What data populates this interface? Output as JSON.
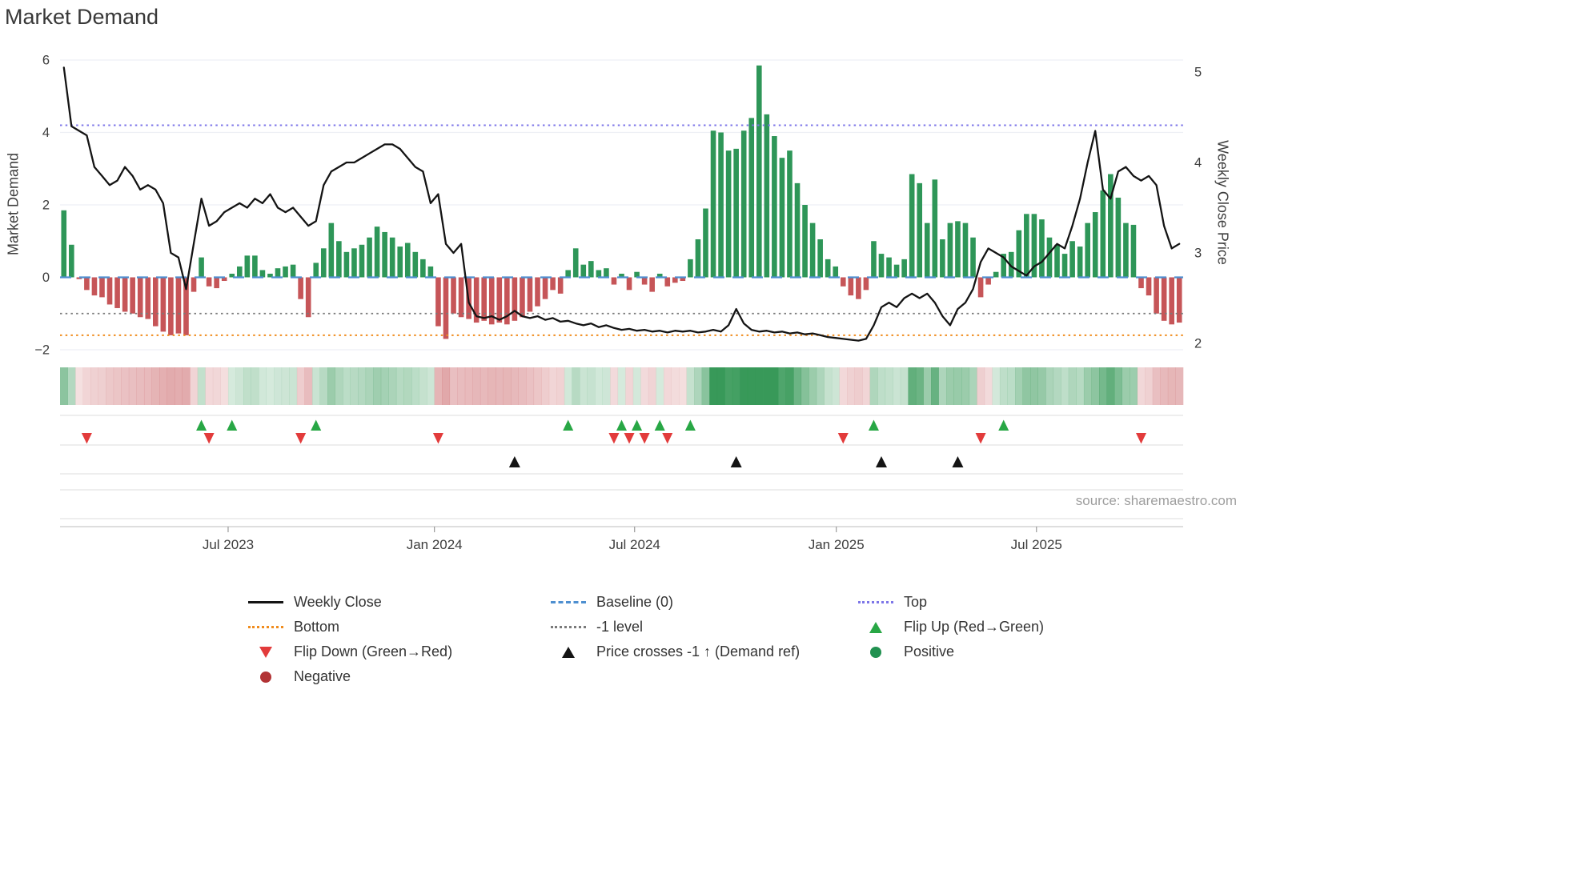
{
  "title": "Market Demand",
  "source": "source: sharemaestro.com",
  "colors": {
    "bar_positive": "#2e9658",
    "bar_negative": "#c65558",
    "weekly_close": "#141414",
    "top_line": "#7d76e8",
    "baseline_line": "#4e8fd0",
    "minus1_line": "#7a7a7a",
    "bottom_line": "#f08c1d",
    "flip_up": "#28a745",
    "flip_down": "#e23b3b",
    "price_cross": "#141414",
    "positive_dot": "#219150",
    "negative_dot": "#b23335",
    "grid": "#edeff5",
    "separator": "#dcdcdc",
    "axis": "#c9c9c9",
    "tick_text": "#3d3d3d"
  },
  "chart_data": {
    "type": "combo: weekly bar (demand) + line (price) + heatmap strip + event markers",
    "title": "Market Demand",
    "x_unit": "weeks (Feb 2023 - Nov 2025)",
    "x_ticks": [
      {
        "week": 21.5,
        "label": "Jul 2023"
      },
      {
        "week": 48.5,
        "label": "Jan 2024"
      },
      {
        "week": 74.7,
        "label": "Jul 2024"
      },
      {
        "week": 101.1,
        "label": "Jan 2025"
      },
      {
        "week": 127.3,
        "label": "Jul 2025"
      }
    ],
    "left_axis": {
      "label": "Market Demand",
      "ticks": [
        6,
        4,
        2,
        0,
        -2
      ],
      "tick_labels": [
        "6",
        "4",
        "2",
        "0",
        "−2"
      ],
      "range": [
        -2.2,
        6.2
      ]
    },
    "right_axis": {
      "label": "Weekly Close Price",
      "ticks": [
        5,
        4,
        3,
        2
      ],
      "tick_labels": [
        "5",
        "4",
        "3",
        "2"
      ],
      "range": [
        1.93,
        5.13
      ]
    },
    "series": [
      {
        "name": "Market Demand",
        "type": "bar",
        "axis": "left",
        "values": [
          1.85,
          0.9,
          -0.05,
          -0.35,
          -0.5,
          -0.55,
          -0.75,
          -0.85,
          -0.95,
          -1.0,
          -1.1,
          -1.15,
          -1.35,
          -1.5,
          -1.6,
          -1.55,
          -1.6,
          -0.4,
          0.55,
          -0.25,
          -0.3,
          -0.1,
          0.1,
          0.3,
          0.6,
          0.6,
          0.2,
          0.1,
          0.25,
          0.3,
          0.35,
          -0.6,
          -1.1,
          0.4,
          0.8,
          1.5,
          1.0,
          0.7,
          0.8,
          0.9,
          1.1,
          1.4,
          1.25,
          1.1,
          0.85,
          0.95,
          0.7,
          0.5,
          0.3,
          -1.35,
          -1.7,
          -1.0,
          -1.1,
          -1.15,
          -1.25,
          -1.2,
          -1.3,
          -1.25,
          -1.3,
          -1.2,
          -1.1,
          -0.95,
          -0.8,
          -0.6,
          -0.35,
          -0.45,
          0.2,
          0.8,
          0.35,
          0.45,
          0.2,
          0.25,
          -0.2,
          0.1,
          -0.35,
          0.15,
          -0.2,
          -0.4,
          0.1,
          -0.25,
          -0.15,
          -0.1,
          0.5,
          1.05,
          1.9,
          4.05,
          4.0,
          3.5,
          3.55,
          4.05,
          4.4,
          5.85,
          4.5,
          3.9,
          3.3,
          3.5,
          2.6,
          2.0,
          1.5,
          1.05,
          0.5,
          0.3,
          -0.25,
          -0.5,
          -0.6,
          -0.35,
          1.0,
          0.65,
          0.55,
          0.35,
          0.5,
          2.85,
          2.6,
          1.5,
          2.7,
          1.05,
          1.5,
          1.55,
          1.5,
          1.1,
          -0.55,
          -0.2,
          0.15,
          0.65,
          0.7,
          1.3,
          1.75,
          1.75,
          1.6,
          1.1,
          0.9,
          0.65,
          1.0,
          0.85,
          1.5,
          1.8,
          2.4,
          2.85,
          2.2,
          1.5,
          1.45,
          -0.3,
          -0.5,
          -1.0,
          -1.2,
          -1.3,
          -1.25
        ]
      },
      {
        "name": "Weekly Close",
        "type": "line",
        "axis": "right",
        "values": [
          5.05,
          4.4,
          4.35,
          4.3,
          3.95,
          3.85,
          3.75,
          3.8,
          3.95,
          3.85,
          3.7,
          3.75,
          3.7,
          3.55,
          3.0,
          2.95,
          2.6,
          3.1,
          3.6,
          3.3,
          3.35,
          3.45,
          3.5,
          3.55,
          3.5,
          3.6,
          3.55,
          3.65,
          3.5,
          3.45,
          3.5,
          3.4,
          3.3,
          3.35,
          3.75,
          3.9,
          3.95,
          4.0,
          4.0,
          4.05,
          4.1,
          4.15,
          4.2,
          4.2,
          4.15,
          4.05,
          3.95,
          3.9,
          3.55,
          3.65,
          3.1,
          3.0,
          3.1,
          2.45,
          2.3,
          2.28,
          2.3,
          2.26,
          2.3,
          2.36,
          2.3,
          2.28,
          2.3,
          2.26,
          2.28,
          2.24,
          2.25,
          2.22,
          2.2,
          2.22,
          2.18,
          2.2,
          2.17,
          2.15,
          2.16,
          2.14,
          2.15,
          2.13,
          2.14,
          2.12,
          2.14,
          2.13,
          2.14,
          2.12,
          2.13,
          2.15,
          2.13,
          2.2,
          2.38,
          2.22,
          2.15,
          2.13,
          2.14,
          2.12,
          2.13,
          2.11,
          2.12,
          2.1,
          2.11,
          2.09,
          2.07,
          2.06,
          2.05,
          2.04,
          2.03,
          2.05,
          2.2,
          2.4,
          2.45,
          2.4,
          2.5,
          2.55,
          2.5,
          2.55,
          2.45,
          2.3,
          2.2,
          2.38,
          2.45,
          2.6,
          2.9,
          3.05,
          3.0,
          2.95,
          2.85,
          2.8,
          2.75,
          2.85,
          2.9,
          3.0,
          3.1,
          3.05,
          3.3,
          3.6,
          4.0,
          4.35,
          3.7,
          3.6,
          3.9,
          3.95,
          3.85,
          3.8,
          3.85,
          3.75,
          3.3,
          3.05,
          3.1
        ]
      }
    ],
    "reference_lines": [
      {
        "name": "Top",
        "value": 4.2,
        "axis": "left",
        "style": "dotted",
        "color": "#7d76e8",
        "width": 2
      },
      {
        "name": "Baseline (0)",
        "value": 0,
        "axis": "left",
        "style": "dashed",
        "color": "#4e8fd0",
        "width": 2.2
      },
      {
        "name": "-1 level",
        "value": -1,
        "axis": "left",
        "style": "dotted",
        "color": "#7a7a7a",
        "width": 1.8
      },
      {
        "name": "Bottom",
        "value": -1.6,
        "axis": "left",
        "style": "dotted",
        "color": "#f08c1d",
        "width": 2
      }
    ],
    "heatmap_strip": "weekly demand intensity: green = positive, red = negative, opacity scales with magnitude",
    "markers": {
      "flip_up_weeks": [
        18,
        22,
        33,
        66,
        73,
        75,
        78,
        82,
        106,
        123
      ],
      "flip_down_weeks": [
        3,
        19,
        31,
        49,
        72,
        74,
        76,
        79,
        102,
        120,
        141
      ],
      "price_cross_up_weeks": [
        59,
        88,
        107,
        117
      ]
    },
    "legend_position": "bottom"
  },
  "legend": {
    "items": [
      {
        "label": "Weekly Close",
        "swatch": "line-solid-black"
      },
      {
        "label": "Bottom",
        "swatch": "line-dotted-orange"
      },
      {
        "label": "Flip Down (Green→Red)",
        "swatch": "triangle-down-red"
      },
      {
        "label": "Negative",
        "swatch": "dot-darkred"
      },
      {
        "label": "Baseline (0)",
        "swatch": "line-dashed-blue"
      },
      {
        "label": "-1 level",
        "swatch": "line-dotted-gray"
      },
      {
        "label": "Price crosses -1 ↑ (Demand ref)",
        "swatch": "triangle-up-black"
      },
      {
        "label": "Top",
        "swatch": "line-dotted-purple"
      },
      {
        "label": "Flip Up (Red→Green)",
        "swatch": "triangle-up-green"
      },
      {
        "label": "Positive",
        "swatch": "dot-green"
      }
    ]
  }
}
